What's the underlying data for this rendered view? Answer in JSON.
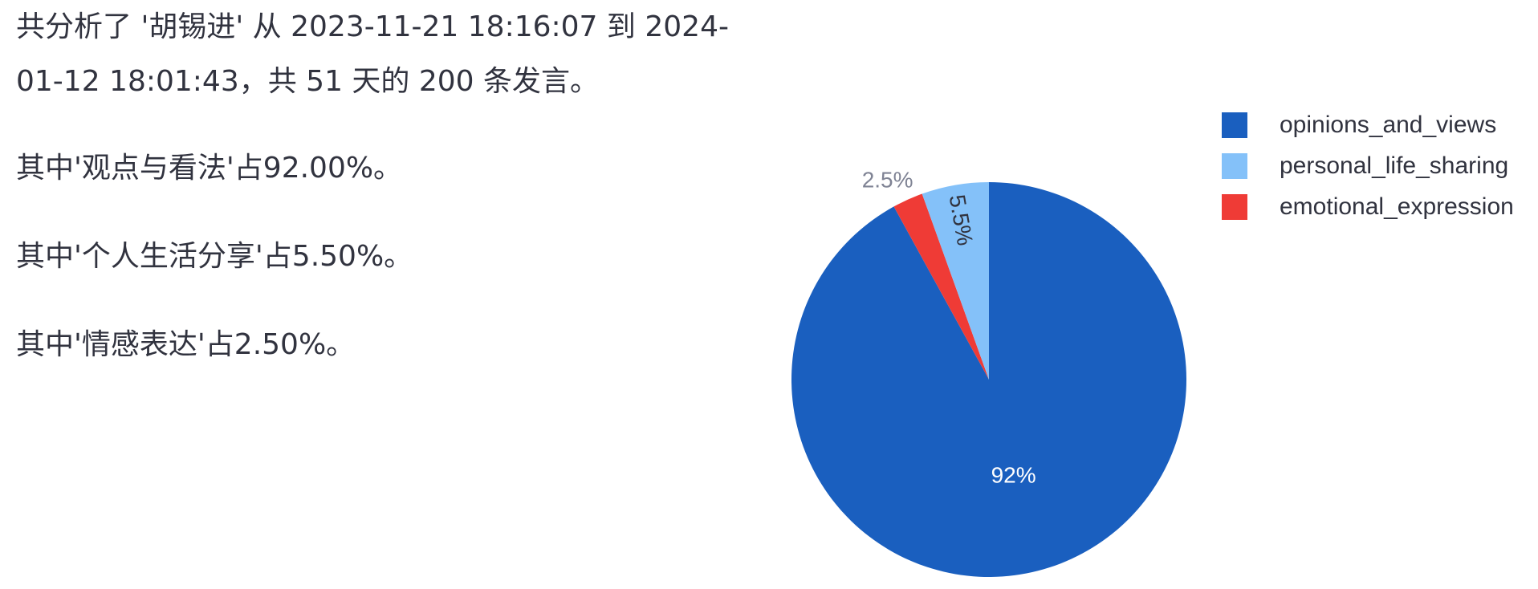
{
  "summary": {
    "line1": "共分析了 '胡锡进' 从 2023-11-21 18:16:07 到 2024-",
    "line2": "01-12 18:01:43，共 51 天的 200 条发言。"
  },
  "stats": [
    {
      "text": "其中'观点与看法'占92.00%。"
    },
    {
      "text": "其中'个人生活分享'占5.50%。"
    },
    {
      "text": "其中'情感表达'占2.50%。"
    }
  ],
  "chart_data": {
    "type": "pie",
    "title": "",
    "legend_position": "top-right",
    "slices": [
      {
        "label": "opinions_and_views",
        "value": 92.0,
        "display": "92%",
        "color": "#1a5fbf"
      },
      {
        "label": "emotional_expression",
        "value": 2.5,
        "display": "2.5%",
        "color": "#ef3b36"
      },
      {
        "label": "personal_life_sharing",
        "value": 5.5,
        "display": "5.5%",
        "color": "#84c1f9"
      }
    ],
    "legend": [
      "opinions_and_views",
      "personal_life_sharing",
      "emotional_expression"
    ]
  }
}
